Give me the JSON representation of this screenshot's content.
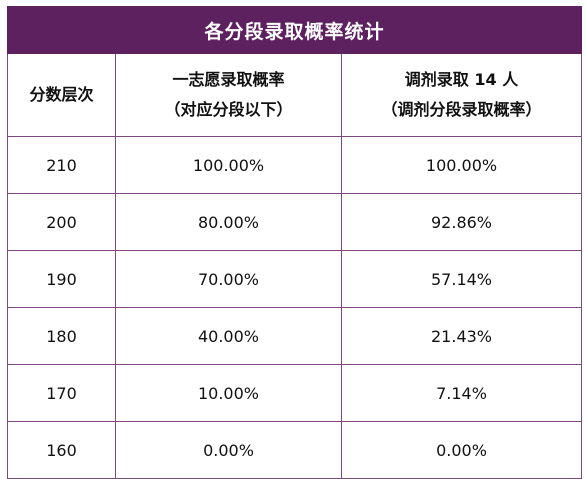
{
  "title": "各分段录取概率统计",
  "headers": {
    "col1": "分数层次",
    "col2_line1": "一志愿录取概率",
    "col2_line2": "（对应分段以下）",
    "col3_line1": "调剂录取 14 人",
    "col3_line2": "（调剂分段录取概率）"
  },
  "rows": [
    {
      "score": "210",
      "first_choice": "100.00%",
      "adjusted": "100.00%"
    },
    {
      "score": "200",
      "first_choice": "80.00%",
      "adjusted": "92.86%"
    },
    {
      "score": "190",
      "first_choice": "70.00%",
      "adjusted": "57.14%"
    },
    {
      "score": "180",
      "first_choice": "40.00%",
      "adjusted": "21.43%"
    },
    {
      "score": "170",
      "first_choice": "10.00%",
      "adjusted": "7.14%"
    },
    {
      "score": "160",
      "first_choice": "0.00%",
      "adjusted": "0.00%"
    }
  ],
  "colors": {
    "header_bg": "#5e2160",
    "border": "#7c4a80"
  }
}
